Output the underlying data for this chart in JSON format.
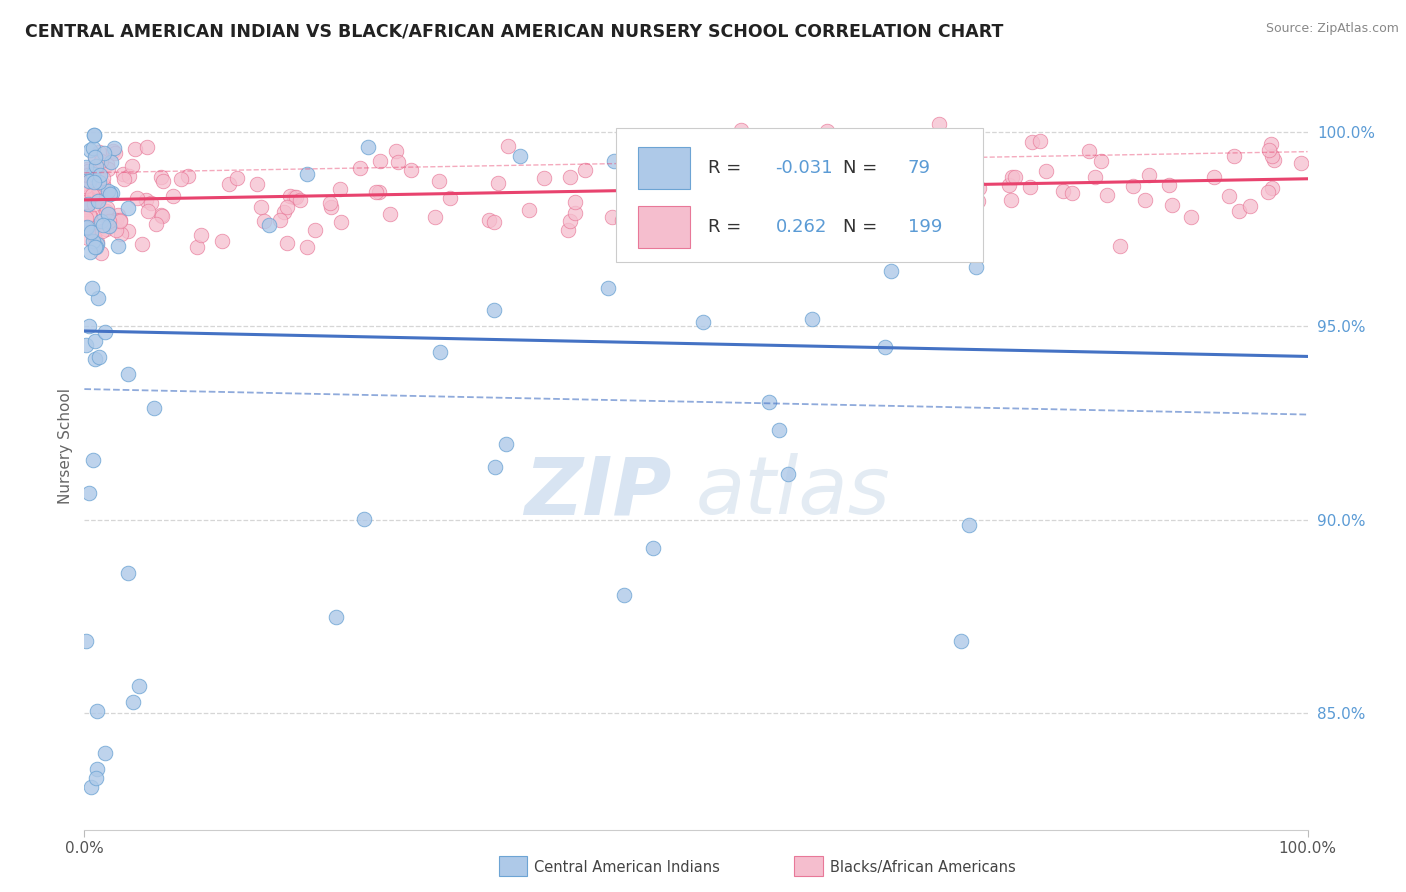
{
  "title": "CENTRAL AMERICAN INDIAN VS BLACK/AFRICAN AMERICAN NURSERY SCHOOL CORRELATION CHART",
  "source": "Source: ZipAtlas.com",
  "ylabel": "Nursery School",
  "right_yticks": [
    85.0,
    90.0,
    95.0,
    100.0
  ],
  "xmin": 0.0,
  "xmax": 100.0,
  "ymin": 82.0,
  "ymax": 101.8,
  "blue_R": -0.031,
  "blue_N": 79,
  "pink_R": 0.262,
  "pink_N": 199,
  "blue_color": "#aec9e8",
  "blue_edge": "#6da4d4",
  "pink_color": "#f5bece",
  "pink_edge": "#e87898",
  "blue_trend_color": "#4472c4",
  "pink_trend_color": "#e8436e",
  "watermark_zip": "ZIP",
  "watermark_atlas": "atlas",
  "watermark_color": "#d0e0f0",
  "title_color": "#222222",
  "right_tick_color": "#5b9bd5",
  "grid_color": "#cccccc",
  "source_color": "#888888"
}
